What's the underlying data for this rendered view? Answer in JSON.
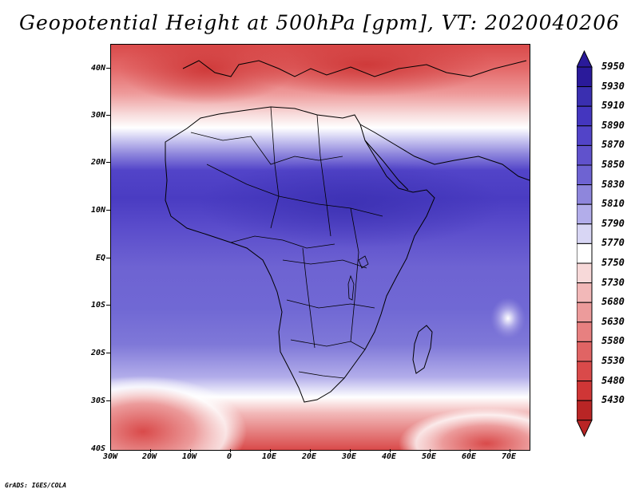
{
  "title": "Geopotential Height at 500hPa [gpm], VT: 2020040206",
  "axes": {
    "lat_labels": [
      "40N",
      "30N",
      "20N",
      "10N",
      "EQ",
      "10S",
      "20S",
      "30S",
      "40S"
    ],
    "lon_labels": [
      "30W",
      "20W",
      "10W",
      "0",
      "10E",
      "20E",
      "30E",
      "40E",
      "50E",
      "60E",
      "70E"
    ]
  },
  "colorbar": {
    "levels": [
      "5950",
      "5930",
      "5910",
      "5890",
      "5870",
      "5850",
      "5830",
      "5810",
      "5790",
      "5770",
      "5750",
      "5730",
      "5680",
      "5630",
      "5580",
      "5530",
      "5480",
      "5430"
    ],
    "colors": [
      "#2a1a9a",
      "#3a2fb0",
      "#4436bf",
      "#5244c8",
      "#6052cc",
      "#6e63d2",
      "#8e86dc",
      "#b2adea",
      "#d8d6f4",
      "#ffffff",
      "#f7d9d9",
      "#f2b8b8",
      "#ec9b9b",
      "#e78080",
      "#e06464",
      "#d94a4a",
      "#cf3636",
      "#b92525"
    ]
  },
  "credit": "GrADS: IGES/COLA"
}
